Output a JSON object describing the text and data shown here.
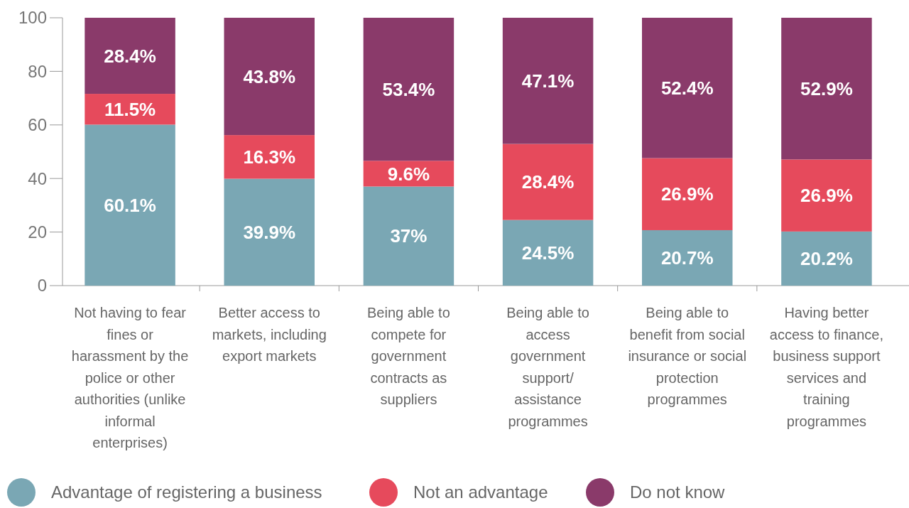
{
  "chart_data": {
    "type": "bar",
    "stacked": true,
    "categories": [
      "Not having to fear fines or harassment by the police or other authorities (unlike informal enterprises)",
      "Better access to markets, including export markets",
      "Being able to compete for government contracts as suppliers",
      "Being able to access government support/ assistance programmes",
      "Being able to benefit from social insurance or social protection programmes",
      "Having better access to finance, business support services and training programmes"
    ],
    "series": [
      {
        "name": "Advantage of registering a business",
        "color": "#7aa7b4",
        "values": [
          60.1,
          39.9,
          37,
          24.5,
          20.7,
          20.2
        ],
        "value_labels": [
          "60.1%",
          "39.9%",
          "37%",
          "24.5%",
          "20.7%",
          "20.2%"
        ]
      },
      {
        "name": "Not an advantage",
        "color": "#e64a5c",
        "values": [
          11.5,
          16.3,
          9.6,
          28.4,
          26.9,
          26.9
        ],
        "value_labels": [
          "11.5%",
          "16.3%",
          "9.6%",
          "28.4%",
          "26.9%",
          "26.9%"
        ]
      },
      {
        "name": "Do not know",
        "color": "#8a3a6a",
        "values": [
          28.4,
          43.8,
          53.4,
          47.1,
          52.4,
          52.9
        ],
        "value_labels": [
          "28.4%",
          "43.8%",
          "53.4%",
          "47.1%",
          "52.4%",
          "52.9%"
        ]
      }
    ],
    "ylim": [
      0,
      100
    ],
    "yticks": [
      0,
      20,
      40,
      60,
      80,
      100
    ],
    "grid": false,
    "legend": "bottom"
  }
}
